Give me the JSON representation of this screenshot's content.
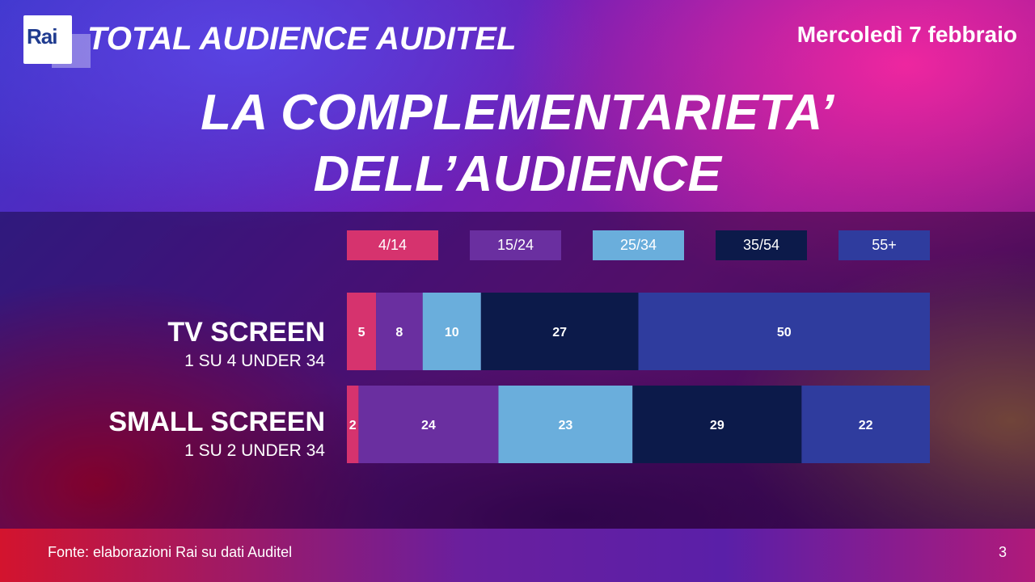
{
  "header": {
    "logo_text": "Rai",
    "title": "TOTAL AUDIENCE AUDITEL",
    "date": "Mercoledì 7 febbraio"
  },
  "headline": {
    "line1": "LA COMPLEMENTARIETA’",
    "line2": "DELL’AUDIENCE"
  },
  "colors": {
    "4/14": "#d6336e",
    "15/24": "#6a2fa0",
    "25/34": "#6aaedc",
    "35/54": "#0c1a4a",
    "55+": "#2f3c9e"
  },
  "chart_data": {
    "type": "bar",
    "orientation": "horizontal",
    "stacked": true,
    "percent": true,
    "legend_position": "top",
    "categories": [
      "TV SCREEN",
      "SMALL SCREEN"
    ],
    "category_subtitles": [
      "1 SU 4 UNDER 34",
      "1 SU 2 UNDER 34"
    ],
    "series": [
      {
        "name": "4/14",
        "values": [
          5,
          2
        ]
      },
      {
        "name": "15/24",
        "values": [
          8,
          24
        ]
      },
      {
        "name": "25/34",
        "values": [
          10,
          23
        ]
      },
      {
        "name": "35/54",
        "values": [
          27,
          29
        ]
      },
      {
        "name": "55+",
        "values": [
          50,
          22
        ]
      }
    ]
  },
  "footer": {
    "source": "Fonte: elaborazioni  Rai su dati Auditel",
    "page": "3"
  }
}
